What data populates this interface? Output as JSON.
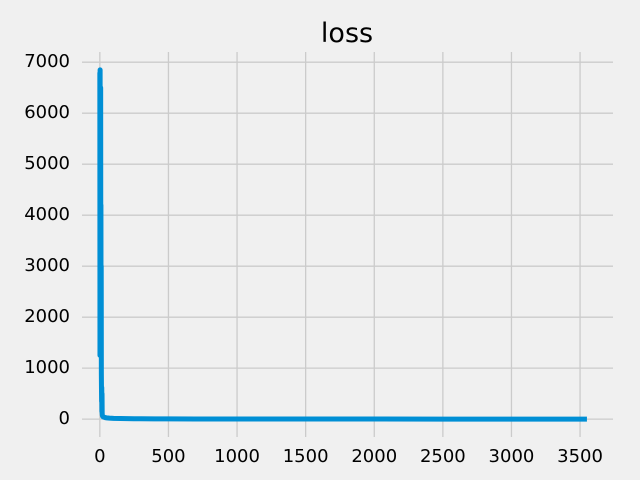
{
  "chart_data": {
    "type": "line",
    "title": "loss",
    "xlabel": "",
    "ylabel": "",
    "xlim": [
      -130,
      3740
    ],
    "ylim": [
      -350,
      7200
    ],
    "x_ticks": [
      0,
      500,
      1000,
      1500,
      2000,
      2500,
      3000,
      3500
    ],
    "y_ticks": [
      0,
      1000,
      2000,
      3000,
      4000,
      5000,
      6000,
      7000
    ],
    "grid": true,
    "legend": "none",
    "colors": {
      "background": "#f0f0f0",
      "grid": "#cbcbcb",
      "line": "#008fd5"
    },
    "series": [
      {
        "x": [
          0,
          1,
          2,
          3,
          4,
          5,
          6,
          7,
          8,
          9,
          10,
          11,
          12,
          13,
          14,
          15,
          16,
          17,
          18,
          20,
          22,
          25,
          30,
          40,
          50,
          70,
          100,
          150,
          200,
          250,
          300,
          400,
          500,
          700,
          1000,
          1500,
          2000,
          2500,
          3000,
          3550
        ],
        "y": [
          6800,
          1250,
          6850,
          3100,
          5600,
          1800,
          6500,
          2600,
          4200,
          1300,
          3000,
          900,
          600,
          350,
          620,
          150,
          500,
          120,
          80,
          60,
          50,
          45,
          40,
          30,
          25,
          20,
          15,
          12,
          10,
          9,
          8,
          6,
          5,
          4,
          3,
          2,
          2,
          1,
          1,
          1
        ]
      }
    ]
  }
}
